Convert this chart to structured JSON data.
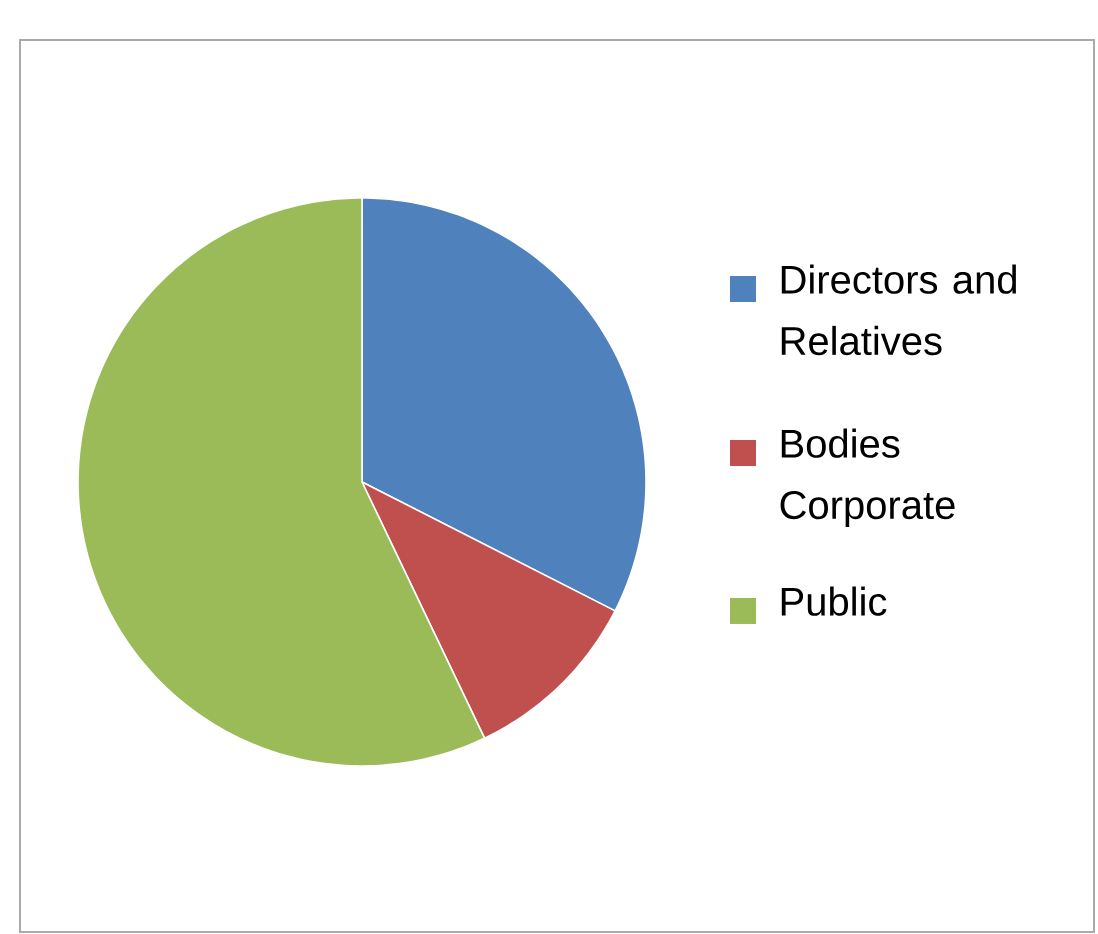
{
  "chart_data": {
    "type": "pie",
    "categories": [
      "Directors and Relatives",
      "Bodies Corporate",
      "Public"
    ],
    "values": [
      32.5,
      10.4,
      57.1
    ],
    "colors": [
      "#4f81bd",
      "#c0504d",
      "#9bbb59"
    ],
    "legend": "right"
  }
}
